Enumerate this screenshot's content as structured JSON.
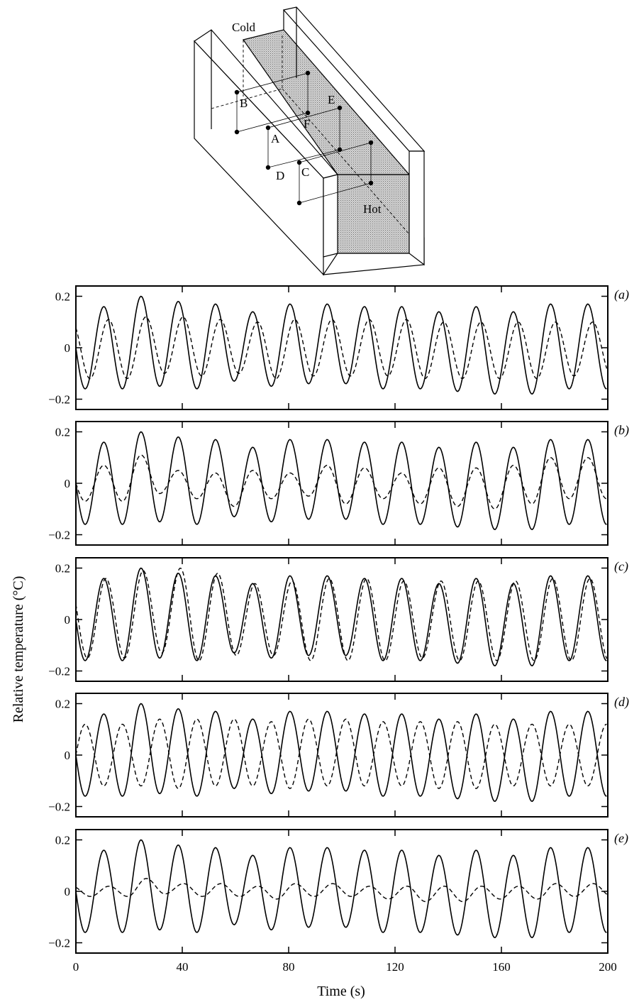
{
  "diagram": {
    "labels": {
      "cold": "Cold",
      "hot": "Hot",
      "A": "A",
      "B": "B",
      "C": "C",
      "D": "D",
      "E": "E",
      "F": "F"
    }
  },
  "chart_data": {
    "type": "line",
    "ylabel": "Relative temperature (°C)",
    "xlabel": "Time (s)",
    "xlim": [
      0,
      200
    ],
    "ylim": [
      -0.24,
      0.24
    ],
    "x_ticks": [
      "0",
      "40",
      "80",
      "120",
      "160",
      "200"
    ],
    "x_tick_values": [
      0,
      40,
      80,
      120,
      160,
      200
    ],
    "y_ticks": [
      "0.2",
      "0",
      "−0.2"
    ],
    "y_tick_values": [
      0.2,
      0,
      -0.2
    ],
    "panels": [
      {
        "id": "a",
        "label": "(a)",
        "solid": {
          "peaks": [
            0.16,
            0.2,
            0.18,
            0.17,
            0.14,
            0.17,
            0.17,
            0.16,
            0.16,
            0.14,
            0.16,
            0.14,
            0.17
          ],
          "troughs": [
            -0.16,
            -0.15,
            -0.16,
            -0.13,
            -0.15,
            -0.14,
            -0.14,
            -0.16,
            -0.16,
            -0.17,
            -0.18,
            -0.18,
            -0.16
          ]
        },
        "dashed": {
          "peaks": [
            0.11,
            0.12,
            0.12,
            0.11,
            0.1,
            0.11,
            0.11,
            0.11,
            0.11,
            0.1,
            0.1,
            0.1,
            0.1
          ],
          "troughs": [
            -0.12,
            -0.1,
            -0.11,
            -0.1,
            -0.12,
            -0.11,
            -0.11,
            -0.11,
            -0.12,
            -0.12,
            -0.12,
            -0.12,
            -0.11
          ],
          "lag": 0.9
        }
      },
      {
        "id": "b",
        "label": "(b)",
        "solid": {
          "peaks": [
            0.16,
            0.2,
            0.18,
            0.17,
            0.14,
            0.17,
            0.17,
            0.16,
            0.16,
            0.14,
            0.16,
            0.14,
            0.17
          ],
          "troughs": [
            -0.16,
            -0.15,
            -0.16,
            -0.13,
            -0.15,
            -0.14,
            -0.14,
            -0.16,
            -0.16,
            -0.17,
            -0.18,
            -0.18,
            -0.16
          ]
        },
        "dashed": {
          "peaks": [
            0.07,
            0.11,
            0.05,
            0.04,
            0.05,
            0.04,
            0.07,
            0.06,
            0.04,
            0.06,
            0.06,
            0.07,
            0.1
          ],
          "troughs": [
            -0.07,
            -0.04,
            -0.06,
            -0.09,
            -0.06,
            -0.05,
            -0.08,
            -0.06,
            -0.08,
            -0.09,
            -0.1,
            -0.08,
            -0.06
          ],
          "lag": 0.0
        }
      },
      {
        "id": "c",
        "label": "(c)",
        "solid": {
          "peaks": [
            0.16,
            0.2,
            0.18,
            0.17,
            0.14,
            0.17,
            0.17,
            0.16,
            0.16,
            0.14,
            0.16,
            0.14,
            0.17
          ],
          "troughs": [
            -0.16,
            -0.15,
            -0.16,
            -0.13,
            -0.15,
            -0.14,
            -0.14,
            -0.16,
            -0.16,
            -0.17,
            -0.18,
            -0.18,
            -0.16
          ]
        },
        "dashed": {
          "peaks": [
            0.16,
            0.19,
            0.2,
            0.18,
            0.14,
            0.15,
            0.16,
            0.16,
            0.15,
            0.15,
            0.15,
            0.15,
            0.16
          ],
          "troughs": [
            -0.15,
            -0.13,
            -0.16,
            -0.14,
            -0.14,
            -0.16,
            -0.16,
            -0.16,
            -0.15,
            -0.16,
            -0.16,
            -0.16,
            -0.16
          ],
          "lag": 0.4
        }
      },
      {
        "id": "d",
        "label": "(d)",
        "solid": {
          "peaks": [
            0.16,
            0.2,
            0.18,
            0.17,
            0.14,
            0.17,
            0.17,
            0.16,
            0.16,
            0.14,
            0.16,
            0.14,
            0.17
          ],
          "troughs": [
            -0.16,
            -0.15,
            -0.16,
            -0.13,
            -0.15,
            -0.14,
            -0.14,
            -0.16,
            -0.16,
            -0.17,
            -0.18,
            -0.18,
            -0.16
          ]
        },
        "dashed": {
          "peaks": [
            0.12,
            0.14,
            0.14,
            0.14,
            0.13,
            0.14,
            0.14,
            0.13,
            0.13,
            0.13,
            0.12,
            0.12,
            0.12
          ],
          "troughs": [
            -0.12,
            -0.13,
            -0.12,
            -0.12,
            -0.13,
            -0.12,
            -0.12,
            -0.12,
            -0.13,
            -0.13,
            -0.12,
            -0.12,
            -0.12
          ],
          "lag": 3.5
        }
      },
      {
        "id": "e",
        "label": "(e)",
        "solid": {
          "peaks": [
            0.16,
            0.2,
            0.18,
            0.17,
            0.14,
            0.17,
            0.17,
            0.16,
            0.16,
            0.14,
            0.16,
            0.14,
            0.17
          ],
          "troughs": [
            -0.16,
            -0.15,
            -0.16,
            -0.13,
            -0.15,
            -0.14,
            -0.14,
            -0.16,
            -0.16,
            -0.17,
            -0.18,
            -0.18,
            -0.16
          ]
        },
        "dashed": {
          "peaks": [
            0.02,
            0.05,
            0.03,
            0.03,
            0.02,
            0.03,
            0.03,
            0.02,
            0.02,
            0.02,
            0.02,
            0.02,
            0.03
          ],
          "troughs": [
            -0.02,
            -0.01,
            -0.02,
            -0.02,
            -0.03,
            -0.02,
            -0.02,
            -0.03,
            -0.04,
            -0.04,
            -0.03,
            -0.03,
            -0.02
          ],
          "lag": 1.0
        }
      }
    ],
    "solid_period_s": 14,
    "solid_first_peak_s": 10.5
  }
}
